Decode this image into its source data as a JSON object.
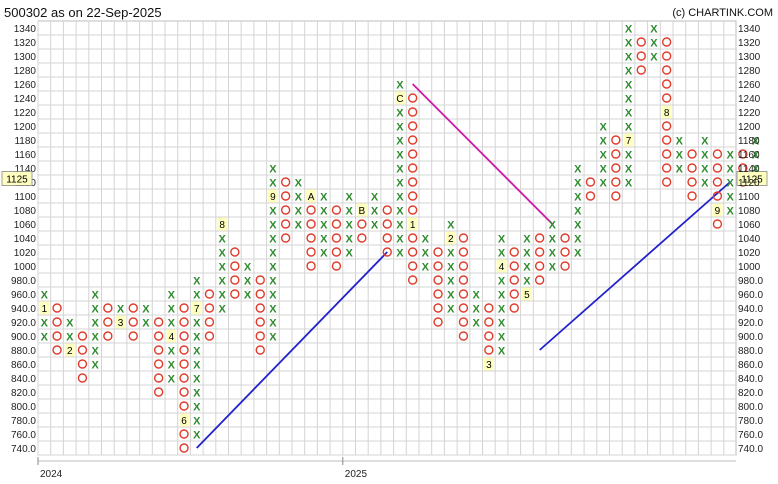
{
  "header": {
    "title": "500302 as on 22-Sep-2025",
    "credit": "(c) CHARTINK.COM"
  },
  "colors": {
    "x_mark": "#2e8b2e",
    "o_mark": "#e03a2a",
    "uptrend": "#2222cc",
    "downtrend": "#cc1aa6",
    "grid": "#d4d4d4",
    "month_label_bg": "#ffffc0",
    "current_price_bg": "#ffffc0"
  },
  "chart_data": {
    "type": "point-and-figure",
    "box_size": 20,
    "y_ticks": [
      740,
      760,
      780,
      800,
      820,
      840,
      860,
      880,
      900,
      920,
      940,
      960,
      980,
      1000,
      1020,
      1040,
      1060,
      1080,
      1100,
      1120,
      1140,
      1160,
      1180,
      1200,
      1220,
      1240,
      1260,
      1280,
      1300,
      1320,
      1340
    ],
    "y_tick_labels": [
      "740.0",
      "760.0",
      "780.0",
      "800.0",
      "820.0",
      "840.0",
      "860.0",
      "880.0",
      "900.0",
      "920.0",
      "940.0",
      "960.0",
      "980.0",
      "1000",
      "1020",
      "1040",
      "1060",
      "1080",
      "1100",
      "1120",
      "1140",
      "1160",
      "1180",
      "1200",
      "1220",
      "1240",
      "1260",
      "1280",
      "1300",
      "1320",
      "1340"
    ],
    "ylim": [
      740,
      1340
    ],
    "current_price": 1125,
    "current_price_label": "1125",
    "x_labels": [
      {
        "col": 0,
        "text": "2024"
      },
      {
        "col": 24,
        "text": "2025"
      }
    ],
    "columns": [
      {
        "type": "X",
        "low": 900,
        "high": 960,
        "labels": {
          "940": "1"
        }
      },
      {
        "type": "O",
        "low": 880,
        "high": 940
      },
      {
        "type": "X",
        "low": 880,
        "high": 920,
        "labels": {
          "880": "2"
        }
      },
      {
        "type": "O",
        "low": 840,
        "high": 900
      },
      {
        "type": "X",
        "low": 860,
        "high": 960
      },
      {
        "type": "O",
        "low": 900,
        "high": 940
      },
      {
        "type": "X",
        "low": 920,
        "high": 940,
        "labels": {
          "920": "3"
        }
      },
      {
        "type": "O",
        "low": 900,
        "high": 940
      },
      {
        "type": "X",
        "low": 920,
        "high": 940
      },
      {
        "type": "O",
        "low": 820,
        "high": 920,
        "labels": {
          "940": "5"
        }
      },
      {
        "type": "X",
        "low": 840,
        "high": 960,
        "labels": {
          "900": "4"
        }
      },
      {
        "type": "O",
        "low": 740,
        "high": 940,
        "labels": {
          "780": "6"
        }
      },
      {
        "type": "X",
        "low": 760,
        "high": 980,
        "labels": {
          "940": "7"
        }
      },
      {
        "type": "O",
        "low": 900,
        "high": 960
      },
      {
        "type": "X",
        "low": 940,
        "high": 1060,
        "labels": {
          "1060": "8"
        }
      },
      {
        "type": "O",
        "low": 960,
        "high": 1020
      },
      {
        "type": "X",
        "low": 960,
        "high": 1000
      },
      {
        "type": "O",
        "low": 880,
        "high": 980
      },
      {
        "type": "X",
        "low": 900,
        "high": 1140,
        "labels": {
          "1100": "9"
        }
      },
      {
        "type": "O",
        "low": 1040,
        "high": 1120
      },
      {
        "type": "X",
        "low": 1060,
        "high": 1120
      },
      {
        "type": "O",
        "low": 1000,
        "high": 1100,
        "labels": {
          "1100": "A"
        }
      },
      {
        "type": "X",
        "low": 1020,
        "high": 1100
      },
      {
        "type": "O",
        "low": 1000,
        "high": 1080
      },
      {
        "type": "X",
        "low": 1020,
        "high": 1100
      },
      {
        "type": "O",
        "low": 1040,
        "high": 1080,
        "labels": {
          "1080": "B"
        }
      },
      {
        "type": "X",
        "low": 1060,
        "high": 1100
      },
      {
        "type": "O",
        "low": 1020,
        "high": 1080
      },
      {
        "type": "X",
        "low": 1020,
        "high": 1260,
        "labels": {
          "1240": "C"
        }
      },
      {
        "type": "O",
        "low": 980,
        "high": 1240,
        "labels": {
          "1060": "1"
        }
      },
      {
        "type": "X",
        "low": 1000,
        "high": 1040
      },
      {
        "type": "O",
        "low": 920,
        "high": 1020
      },
      {
        "type": "X",
        "low": 940,
        "high": 1060,
        "labels": {
          "1040": "2"
        }
      },
      {
        "type": "O",
        "low": 900,
        "high": 1040
      },
      {
        "type": "X",
        "low": 920,
        "high": 960
      },
      {
        "type": "O",
        "low": 860,
        "high": 940,
        "labels": {
          "860": "3"
        }
      },
      {
        "type": "X",
        "low": 880,
        "high": 1040,
        "labels": {
          "1000": "4"
        }
      },
      {
        "type": "O",
        "low": 940,
        "high": 1020
      },
      {
        "type": "X",
        "low": 960,
        "high": 1040,
        "labels": {
          "960": "5"
        }
      },
      {
        "type": "O",
        "low": 980,
        "high": 1040
      },
      {
        "type": "X",
        "low": 1000,
        "high": 1060
      },
      {
        "type": "O",
        "low": 1000,
        "high": 1040
      },
      {
        "type": "X",
        "low": 1020,
        "high": 1140
      },
      {
        "type": "O",
        "low": 1100,
        "high": 1120
      },
      {
        "type": "X",
        "low": 1120,
        "high": 1200,
        "labels": {
          "1100": "6"
        }
      },
      {
        "type": "O",
        "low": 1100,
        "high": 1180
      },
      {
        "type": "X",
        "low": 1120,
        "high": 1340,
        "labels": {
          "1180": "7"
        }
      },
      {
        "type": "O",
        "low": 1280,
        "high": 1320
      },
      {
        "type": "X",
        "low": 1300,
        "high": 1340
      },
      {
        "type": "O",
        "low": 1120,
        "high": 1320,
        "labels": {
          "1220": "8"
        }
      },
      {
        "type": "X",
        "low": 1140,
        "high": 1180
      },
      {
        "type": "O",
        "low": 1100,
        "high": 1160
      },
      {
        "type": "X",
        "low": 1120,
        "high": 1180
      },
      {
        "type": "O",
        "low": 1060,
        "high": 1160,
        "labels": {
          "1080": "9"
        }
      },
      {
        "type": "X",
        "low": 1080,
        "high": 1160
      },
      {
        "type": "O",
        "low": 1120,
        "high": 1160
      },
      {
        "type": "X",
        "low": 1140,
        "high": 1180
      }
    ],
    "trendlines": [
      {
        "kind": "up",
        "from": {
          "col": 12,
          "price": 740
        },
        "to": {
          "col": 27,
          "price": 1020
        }
      },
      {
        "kind": "down",
        "from": {
          "col": 29,
          "price": 1260
        },
        "to": {
          "col": 40,
          "price": 1060
        }
      },
      {
        "kind": "up",
        "from": {
          "col": 39,
          "price": 880
        },
        "to": {
          "col": 54,
          "price": 1120
        }
      }
    ]
  }
}
